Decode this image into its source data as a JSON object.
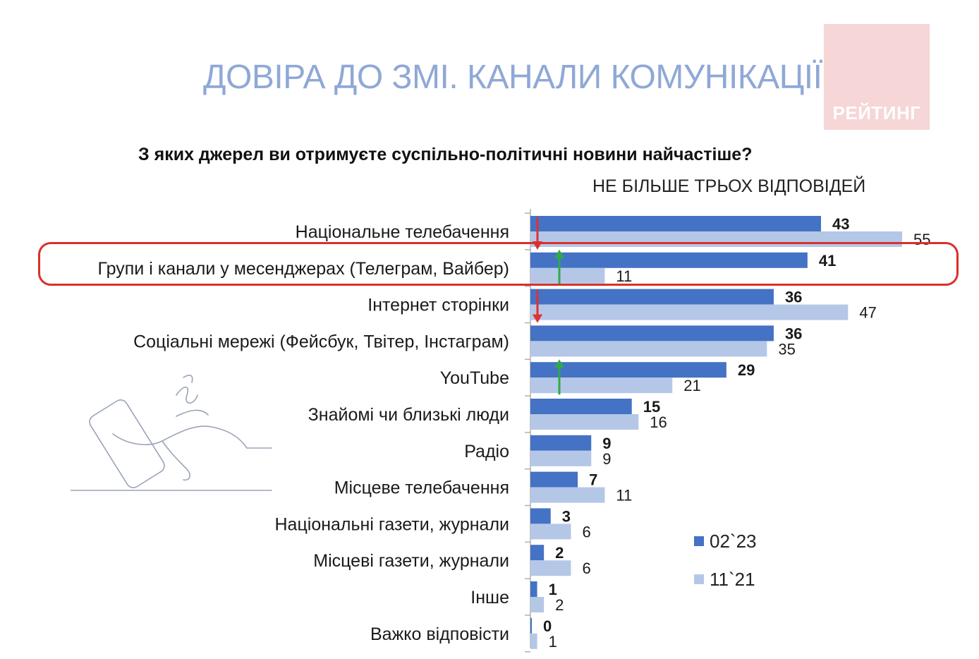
{
  "slide_title": "ДОВІРА ДО ЗМІ. КАНАЛИ КОМУНІКАЦІЇ",
  "logo": {
    "text": "РЕЙТИНГ",
    "color": "#f6d6d6"
  },
  "chart_data": {
    "type": "bar",
    "orientation": "horizontal",
    "title": "З яких джерел ви отримуєте суспільно-політичні новини найчастіше?",
    "subtitle": "НЕ БІЛЬШЕ ТРЬОХ ВІДПОВІДЕЙ",
    "categories": [
      "Національне телебачення",
      "Групи і канали у месенджерах (Телеграм, Вайбер)",
      "Інтернет сторінки",
      "Соціальні мережі (Фейсбук, Твітер, Інстаграм)",
      "YouTube",
      "Знайомі чи близькі люди",
      "Радіо",
      "Місцеве телебачення",
      "Національні газети, журнали",
      "Місцеві газети, журнали",
      "Інше",
      "Важко відповісти"
    ],
    "series": [
      {
        "name": "02`23",
        "color": "#4472c4",
        "values": [
          43,
          41,
          36,
          36,
          29,
          15,
          9,
          7,
          3,
          2,
          1,
          0
        ]
      },
      {
        "name": "11`21",
        "color": "#b4c7e7",
        "values": [
          55,
          11,
          47,
          35,
          21,
          16,
          9,
          11,
          6,
          6,
          2,
          1
        ]
      }
    ],
    "xlim": [
      0,
      55
    ],
    "legend": "bottom-right",
    "grid": false,
    "trend_arrows": [
      {
        "category": "Національне телебачення",
        "direction": "down",
        "color": "#e03030"
      },
      {
        "category": "Групи і канали у месенджерах (Телеграм, Вайбер)",
        "direction": "up",
        "color": "#2eaa4a"
      },
      {
        "category": "Інтернет сторінки",
        "direction": "down",
        "color": "#e03030"
      },
      {
        "category": "YouTube",
        "direction": "up",
        "color": "#2eaa4a"
      }
    ],
    "highlighted_category": "Групи і канали у месенджерах (Телеграм, Вайбер)"
  }
}
